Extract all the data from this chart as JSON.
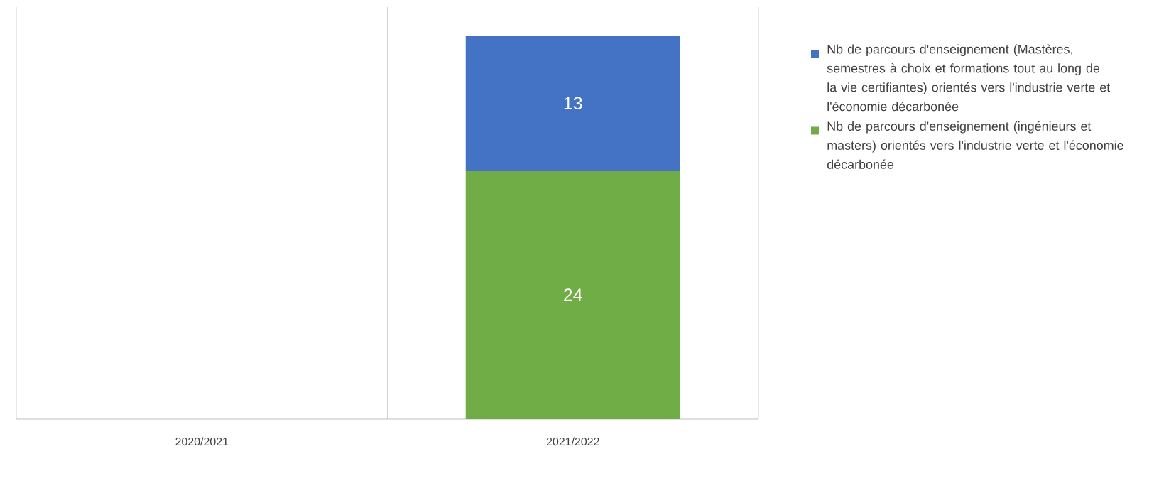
{
  "chart_data": {
    "type": "bar",
    "stacked": true,
    "categories": [
      "2020/2021",
      "2021/2022"
    ],
    "series": [
      {
        "name": "Nb de parcours d'enseignement (ingénieurs et masters) orientés vers l'industrie verte et l'économie décarbonée",
        "color": "#70ad47",
        "values": [
          null,
          24
        ]
      },
      {
        "name": "Nb de parcours d'enseignement (Mastères, semestres à choix et formations tout au long de la vie certifiantes)  orientés vers l'industrie verte et l'économie décarbonée",
        "color": "#4472c4",
        "values": [
          null,
          13
        ]
      }
    ],
    "data_labels": true,
    "grid": "x",
    "legend": "right"
  }
}
